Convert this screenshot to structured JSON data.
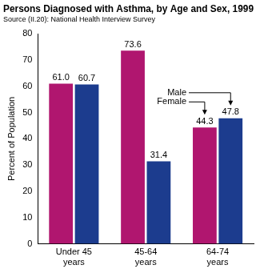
{
  "chart_data": {
    "type": "bar",
    "title": "Persons Diagnosed with Asthma, by Age and Sex, 1999",
    "subtitle": "Source (II.20): National Health Interview Survey",
    "y_label": "Percent of Population",
    "categories": [
      "Under 45 years",
      "45-64 years",
      "64-74 years"
    ],
    "series": [
      {
        "name": "Female",
        "color": "#b0166f",
        "values": [
          61.0,
          73.6,
          44.3
        ],
        "value_labels": [
          "61.0",
          "73.6",
          "44.3"
        ]
      },
      {
        "name": "Male",
        "color": "#1c3c8e",
        "values": [
          60.7,
          31.4,
          47.8
        ],
        "value_labels": [
          "60.7",
          "31.4",
          "47.8"
        ]
      }
    ],
    "ylim": [
      0,
      80
    ],
    "yticks": [
      0,
      10,
      20,
      30,
      40,
      50,
      60,
      70,
      80
    ],
    "grid": false,
    "data_labels": true
  }
}
